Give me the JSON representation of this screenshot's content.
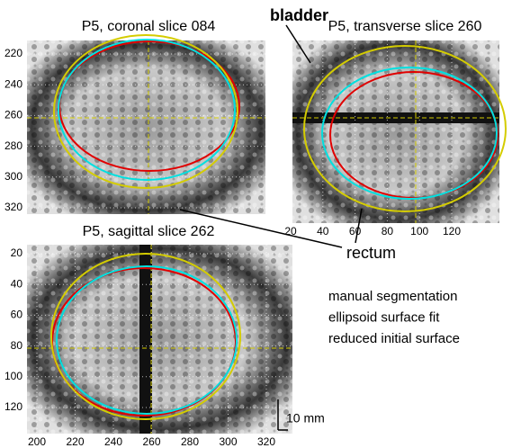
{
  "panels": [
    {
      "title": "P5, coronal slice 084",
      "yticks": [
        220,
        240,
        260,
        280,
        300,
        320
      ]
    },
    {
      "title": "P5, transverse slice 260",
      "xticks": [
        20,
        40,
        60,
        80,
        100,
        120
      ]
    },
    {
      "title": "P5, sagittal slice 262",
      "yticks": [
        20,
        40,
        60,
        80,
        100,
        120
      ],
      "xticks": [
        200,
        220,
        240,
        260,
        280,
        300,
        320
      ]
    }
  ],
  "annotations": {
    "bladder": "bladder",
    "rectum": "rectum",
    "scale": "10 mm"
  },
  "legend": [
    {
      "label": "manual segmentation",
      "color": "#c00000"
    },
    {
      "label": "ellipsoid surface fit",
      "color": "#c8b400"
    },
    {
      "label": "reduced initial surface",
      "color": "#4f81bd"
    }
  ]
}
